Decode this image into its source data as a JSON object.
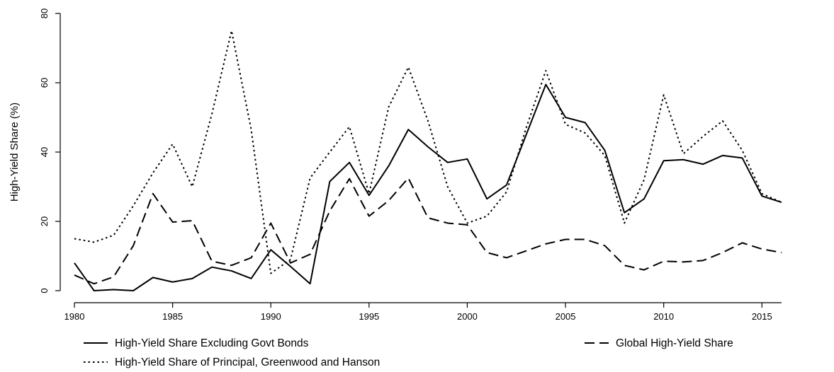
{
  "chart_data": {
    "type": "line",
    "ylabel": "High-Yield Share (%)",
    "xlim": [
      1980,
      2016
    ],
    "ylim": [
      0,
      80
    ],
    "x_ticks": [
      1980,
      1985,
      1990,
      1995,
      2000,
      2005,
      2010,
      2015
    ],
    "y_ticks": [
      0,
      20,
      40,
      60,
      80
    ],
    "grid": false,
    "legend_position": "bottom",
    "x": [
      1980,
      1981,
      1982,
      1983,
      1984,
      1985,
      1986,
      1987,
      1988,
      1989,
      1990,
      1991,
      1992,
      1993,
      1994,
      1995,
      1996,
      1997,
      1998,
      1999,
      2000,
      2001,
      2002,
      2003,
      2004,
      2005,
      2006,
      2007,
      2008,
      2009,
      2010,
      2011,
      2012,
      2013,
      2014,
      2015,
      2016
    ],
    "series": [
      {
        "name": "High-Yield Share Excluding Govt Bonds",
        "style": "solid",
        "values": [
          8,
          0,
          0.3,
          0,
          3.8,
          2.5,
          3.5,
          6.8,
          5.7,
          3.5,
          11.8,
          7,
          2,
          31.5,
          37,
          27.5,
          36,
          46.5,
          41.5,
          37,
          38,
          26.5,
          30.5,
          45,
          59.5,
          50,
          48.5,
          40.5,
          22.5,
          26.5,
          37.5,
          37.8,
          36.5,
          39,
          38.3,
          27.3,
          25.5
        ]
      },
      {
        "name": "Global High-Yield Share",
        "style": "dashed",
        "values": [
          4.5,
          2,
          4,
          13,
          28,
          19.8,
          20.2,
          8.5,
          7.3,
          9.5,
          19.5,
          8,
          10.5,
          23,
          32.3,
          21.5,
          26,
          32.5,
          21,
          19.5,
          19,
          11,
          9.5,
          11.5,
          13.5,
          14.8,
          14.8,
          13,
          7.3,
          6,
          8.5,
          8.3,
          8.7,
          11,
          13.8,
          12,
          11
        ]
      },
      {
        "name": "High-Yield Share of Principal, Greenwood and Hanson",
        "style": "dotted",
        "values": [
          15,
          14,
          16,
          24.5,
          34,
          42.3,
          30,
          51,
          75,
          46.5,
          5,
          9,
          32.5,
          40,
          47.3,
          28,
          53,
          64.5,
          49,
          30,
          19.5,
          21.5,
          28.5,
          47,
          63.5,
          48,
          45.5,
          39,
          19.5,
          32,
          56.5,
          39.5,
          44.5,
          49,
          40.5,
          28,
          25.5
        ]
      }
    ]
  }
}
